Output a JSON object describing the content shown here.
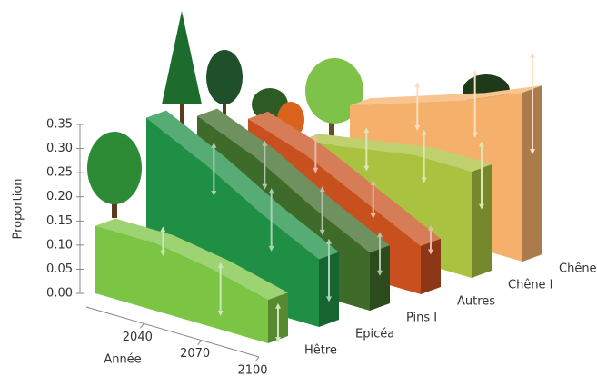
{
  "chart_data": {
    "type": "ribbon3d",
    "y_label": "Proportion",
    "x_label": "Année",
    "x": [
      2010,
      2040,
      2070,
      2100
    ],
    "xlim": [
      2010,
      2100
    ],
    "xticks": [
      2040,
      2070,
      2100
    ],
    "ylim": [
      0,
      0.35
    ],
    "yticks": [
      {
        "value": 0,
        "label": "0.00"
      },
      {
        "value": 0.05,
        "label": "0.05"
      },
      {
        "value": 0.1,
        "label": "0.10"
      },
      {
        "value": 0.15,
        "label": "0.15"
      },
      {
        "value": 0.2,
        "label": "0.20"
      },
      {
        "value": 0.25,
        "label": "0.25"
      },
      {
        "value": 0.3,
        "label": "0.30"
      },
      {
        "value": 0.35,
        "label": "0.35"
      }
    ],
    "series": [
      {
        "name": "Hêtre",
        "color": "#7cc444",
        "values": [
          0.14,
          0.14,
          0.12,
          0.09
        ],
        "low": [
          null,
          0.11,
          0.02,
          0.0
        ],
        "high": [
          null,
          0.16,
          0.12,
          0.07
        ]
      },
      {
        "name": "Epicéa",
        "color": "#1f8f45",
        "values": [
          0.33,
          0.27,
          0.2,
          0.14
        ],
        "low": [
          null,
          0.2,
          0.12,
          0.05
        ],
        "high": [
          null,
          0.3,
          0.24,
          0.17
        ]
      },
      {
        "name": "Pins I",
        "color": "#3f6b2a",
        "values": [
          0.3,
          0.25,
          0.18,
          0.12
        ],
        "low": [
          null,
          0.18,
          0.12,
          0.07
        ],
        "high": [
          null,
          0.27,
          0.21,
          0.15
        ]
      },
      {
        "name": "Autres",
        "color": "#c8501f",
        "values": [
          0.26,
          0.22,
          0.16,
          0.1
        ],
        "low": [
          null,
          0.18,
          0.12,
          0.08
        ],
        "high": [
          null,
          0.25,
          0.19,
          0.13
        ]
      },
      {
        "name": "Chêne I",
        "color": "#a9c23f",
        "values": [
          0.18,
          0.2,
          0.22,
          0.22
        ],
        "low": [
          null,
          0.15,
          0.16,
          0.14
        ],
        "high": [
          null,
          0.23,
          0.26,
          0.27
        ]
      },
      {
        "name": "Chêne II",
        "color": "#f5b06b",
        "values": [
          0.22,
          0.26,
          0.3,
          0.35
        ],
        "low": [
          null,
          0.2,
          0.22,
          0.22
        ],
        "high": [
          null,
          0.29,
          0.35,
          0.42
        ]
      }
    ]
  }
}
